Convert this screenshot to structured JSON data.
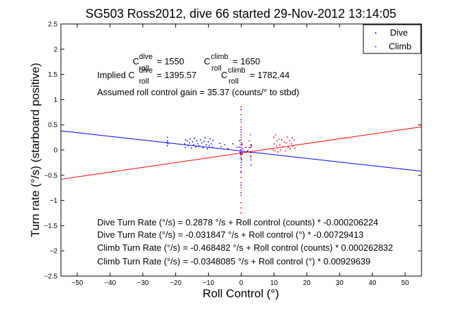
{
  "chart_data": {
    "type": "scatter",
    "title": "SG503 Ross2012, dive 66 started 29-Nov-2012 13:14:05",
    "xlabel": "Roll Control (°)",
    "ylabel": "Turn rate (°/s) (starboard positive)",
    "xlim": [
      -55,
      55
    ],
    "ylim": [
      -2.5,
      2.5
    ],
    "x_ticks": [
      -50,
      -40,
      -30,
      -20,
      -10,
      0,
      10,
      20,
      30,
      40,
      50
    ],
    "y_ticks": [
      -2.5,
      -2,
      -1.5,
      -1,
      -0.5,
      0,
      0.5,
      1,
      1.5,
      2,
      2.5
    ],
    "x_tick_labels": [
      "−50",
      "−40",
      "−30",
      "−20",
      "−10",
      "0",
      "10",
      "20",
      "30",
      "40",
      "50"
    ],
    "y_tick_labels": [
      "−2.5",
      "−2",
      "−1.5",
      "−1",
      "−0.5",
      "0",
      "0.5",
      "1",
      "1.5",
      "2",
      "2.5"
    ],
    "grid": false,
    "legend_position": "top-right",
    "series": [
      {
        "name": "Dive",
        "color": "#0000ff",
        "points": [
          [
            -22.5,
            0.25
          ],
          [
            -22.4,
            0.18
          ],
          [
            -22.6,
            0.15
          ],
          [
            -22.5,
            0.08
          ],
          [
            -22.3,
            0.12
          ],
          [
            -17.2,
            0.12
          ],
          [
            -16.9,
            0.2
          ],
          [
            -17.0,
            0.05
          ],
          [
            -16.4,
            0.18
          ],
          [
            -16.1,
            0.08
          ],
          [
            -15.8,
            0.14
          ],
          [
            -15.5,
            0.22
          ],
          [
            -15.2,
            0.04
          ],
          [
            -14.8,
            0.16
          ],
          [
            -14.5,
            0.1
          ],
          [
            -14.2,
            0.23
          ],
          [
            -13.8,
            0.06
          ],
          [
            -13.5,
            0.18
          ],
          [
            -13.2,
            0.12
          ],
          [
            -12.8,
            0.08
          ],
          [
            -12.4,
            0.2
          ],
          [
            -12.0,
            0.14
          ],
          [
            -11.6,
            0.04
          ],
          [
            -11.3,
            0.17
          ],
          [
            -11.0,
            0.24
          ],
          [
            -10.6,
            0.1
          ],
          [
            -10.3,
            0.02
          ],
          [
            -10.0,
            0.16
          ],
          [
            -9.7,
            0.08
          ],
          [
            -9.4,
            0.22
          ],
          [
            -9.1,
            0.12
          ],
          [
            -8.8,
            0.05
          ],
          [
            -8.6,
            0.19
          ],
          [
            -6.5,
            0.13
          ],
          [
            -6.1,
            0.06
          ],
          [
            -5.0,
            0.1
          ],
          [
            -4.0,
            0.03
          ],
          [
            -2.5,
            0.12
          ],
          [
            -1.2,
            0.05
          ],
          [
            -0.5,
            0.18
          ],
          [
            -0.3,
            -0.05
          ],
          [
            0,
            0.8
          ],
          [
            0,
            0.6
          ],
          [
            0,
            0.4
          ],
          [
            0,
            0.3
          ],
          [
            0,
            0.2
          ],
          [
            0,
            0.1
          ],
          [
            0,
            0.05
          ],
          [
            0,
            0
          ],
          [
            0,
            -0.05
          ],
          [
            0,
            -0.1
          ],
          [
            0,
            -0.15
          ],
          [
            0,
            -0.25
          ],
          [
            0,
            -0.35
          ],
          [
            0,
            -0.45
          ],
          [
            0,
            -0.7
          ],
          [
            0,
            -0.85
          ],
          [
            0.3,
            0.12
          ],
          [
            0.4,
            -0.08
          ],
          [
            0.2,
            -0.2
          ],
          [
            0.5,
            0.02
          ],
          [
            1.5,
            0.05
          ],
          [
            2.0,
            -0.02
          ],
          [
            3.0,
            0.05
          ],
          [
            3.0,
            -0.05
          ],
          [
            3.0,
            -0.12
          ],
          [
            3.0,
            -0.2
          ],
          [
            3.0,
            -0.3
          ],
          [
            3.1,
            0.1
          ]
        ]
      },
      {
        "name": "Climb",
        "color": "#ff0000",
        "points": [
          [
            -0.5,
            0.05
          ],
          [
            -0.3,
            -0.02
          ],
          [
            -0.2,
            -0.1
          ],
          [
            0,
            0.85
          ],
          [
            0,
            0.7
          ],
          [
            0,
            0.55
          ],
          [
            0,
            0.45
          ],
          [
            0,
            0.35
          ],
          [
            0,
            0.25
          ],
          [
            0,
            0.15
          ],
          [
            0,
            0.05
          ],
          [
            0,
            -0.08
          ],
          [
            0,
            -0.18
          ],
          [
            0,
            -0.3
          ],
          [
            0,
            -0.42
          ],
          [
            0,
            -0.55
          ],
          [
            0,
            -0.65
          ],
          [
            0,
            -0.75
          ],
          [
            0,
            -0.9
          ],
          [
            0,
            -1.05
          ],
          [
            0,
            -1.15
          ],
          [
            0,
            -1.25
          ],
          [
            0.3,
            0.1
          ],
          [
            0.5,
            -0.05
          ],
          [
            2.5,
            0.18
          ],
          [
            2.6,
            0.05
          ],
          [
            2.7,
            -0.05
          ],
          [
            2.8,
            0.3
          ],
          [
            2.9,
            0.1
          ],
          [
            3.0,
            -0.15
          ],
          [
            3.2,
            0.08
          ],
          [
            9.8,
            0.0
          ],
          [
            10.0,
            0.25
          ],
          [
            10.1,
            0.12
          ],
          [
            10.3,
            -0.02
          ],
          [
            10.5,
            0.3
          ],
          [
            10.8,
            0.08
          ],
          [
            11.0,
            0.18
          ],
          [
            11.2,
            -0.04
          ],
          [
            11.5,
            0.22
          ],
          [
            11.8,
            0.1
          ],
          [
            12.0,
            0.0
          ],
          [
            12.4,
            0.2
          ],
          [
            12.8,
            0.06
          ],
          [
            13.2,
            0.16
          ],
          [
            13.5,
            -0.02
          ],
          [
            13.8,
            0.14
          ],
          [
            14.1,
            0.25
          ],
          [
            14.4,
            0.05
          ],
          [
            14.7,
            0.18
          ],
          [
            15.0,
            0.02
          ],
          [
            15.3,
            0.12
          ],
          [
            15.6,
            0.24
          ],
          [
            15.9,
            0.08
          ],
          [
            16.2,
            0.2
          ],
          [
            16.4,
            0.03
          ]
        ]
      }
    ],
    "fit_lines": [
      {
        "name": "Dive fit",
        "color": "#0000ff",
        "x": [
          -55,
          55
        ],
        "y": [
          0.38,
          -0.42
        ]
      },
      {
        "name": "Climb fit",
        "color": "#ff0000",
        "x": [
          -55,
          55
        ],
        "y": [
          -0.58,
          0.46
        ]
      }
    ],
    "annotations": {
      "c_roll_dive_label": "C",
      "c_roll_dive_sup": "dive",
      "c_roll_dive_sub": "roll",
      "c_roll_dive_value": "= 1550",
      "c_roll_climb_label": "C",
      "c_roll_climb_sup": "climb",
      "c_roll_climb_sub": "roll",
      "c_roll_climb_value": "= 1650",
      "implied_prefix": "Implied C",
      "implied_dive_sup": "dive",
      "implied_dive_sub": "roll",
      "implied_dive_value": "= 1395.57",
      "implied_climb_label": "C",
      "implied_climb_sup": "climb",
      "implied_climb_sub": "roll",
      "implied_climb_value": "= 1782.44",
      "gain": "Assumed roll control gain = 35.37 (counts/° to stbd)",
      "eq1": "Dive Turn Rate (°/s) = 0.2878 °/s + Roll control (counts) * -0.000206224",
      "eq2": "Dive Turn Rate (°/s) = -0.031847 °/s + Roll control (°) * -0.00729413",
      "eq3": "Climb Turn Rate (°/s) = -0.468482 °/s + Roll control (counts) * 0.000262832",
      "eq4": "Climb Turn Rate (°/s) = -0.0348085 °/s + Roll control (°) * 0.00929639"
    }
  }
}
